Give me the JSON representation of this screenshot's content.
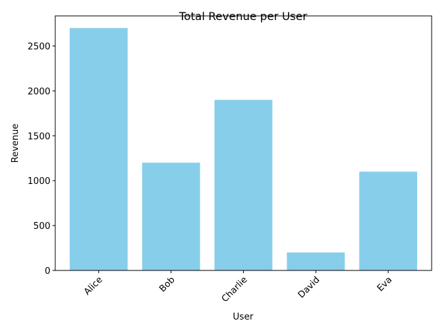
{
  "chart_data": {
    "type": "bar",
    "title": "Total Revenue per User",
    "xlabel": "User",
    "ylabel": "Revenue",
    "categories": [
      "Alice",
      "Bob",
      "Charlie",
      "David",
      "Eva"
    ],
    "values": [
      2700,
      1200,
      1900,
      200,
      1100
    ],
    "ylim": [
      0,
      2835
    ],
    "yticks": [
      0,
      500,
      1000,
      1500,
      2000,
      2500
    ],
    "bar_color": "#87ceeb",
    "grid": false,
    "legend": "none"
  }
}
